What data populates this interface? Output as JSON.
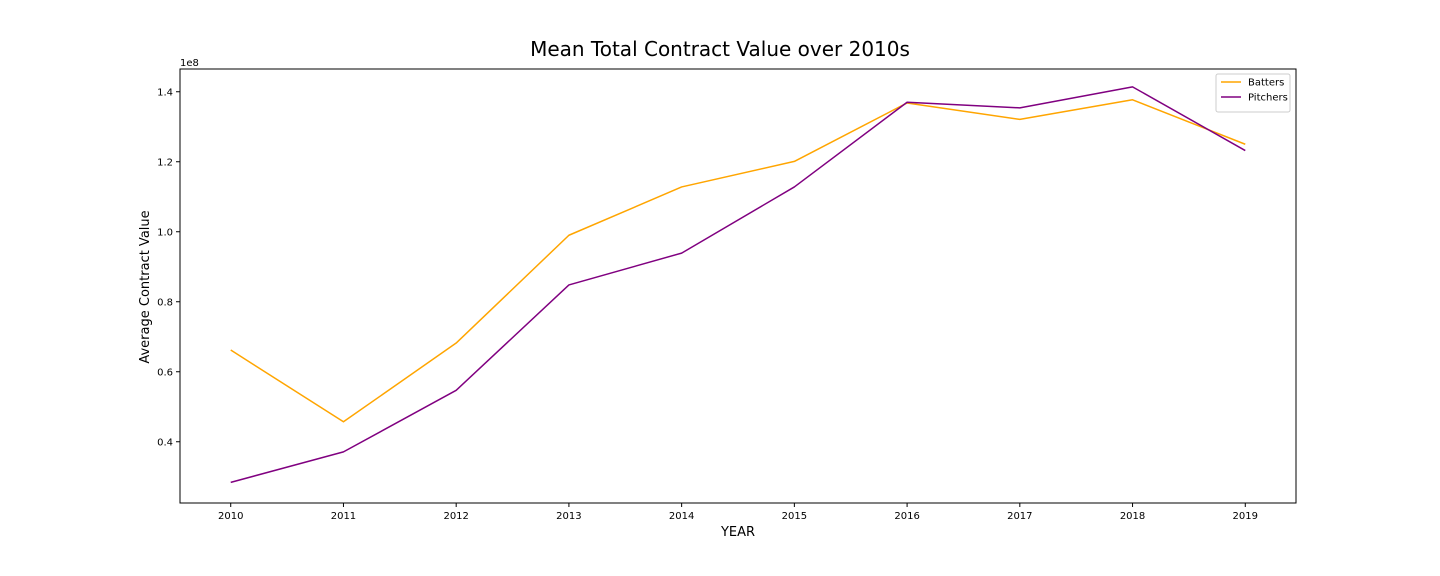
{
  "chart_data": {
    "type": "line",
    "title": "Mean Total Contract Value over 2010s",
    "xlabel": "YEAR",
    "ylabel": "Average Contract Value",
    "y_offset_label": "1e8",
    "y_scale_factor": 100000000,
    "x": [
      2010,
      2011,
      2012,
      2013,
      2014,
      2015,
      2016,
      2017,
      2018,
      2019
    ],
    "x_tick_labels": [
      "2010",
      "2011",
      "2012",
      "2013",
      "2014",
      "2015",
      "2016",
      "2017",
      "2018",
      "2019"
    ],
    "y_ticks": [
      0.4,
      0.6,
      0.8,
      1.0,
      1.2,
      1.4
    ],
    "y_tick_labels": [
      "0.4",
      "0.6",
      "0.8",
      "1.0",
      "1.2",
      "1.4"
    ],
    "xlim": [
      2009.55,
      2019.45
    ],
    "ylim": [
      0.225,
      1.465
    ],
    "grid": false,
    "legend_position": "top-right",
    "series": [
      {
        "name": "Batters",
        "color": "#FFA500",
        "values": [
          0.662,
          0.457,
          0.682,
          0.99,
          1.128,
          1.201,
          1.368,
          1.321,
          1.377,
          1.25
        ]
      },
      {
        "name": "Pitchers",
        "color": "#800080",
        "values": [
          0.284,
          0.371,
          0.547,
          0.848,
          0.939,
          1.128,
          1.37,
          1.354,
          1.414,
          1.232
        ]
      }
    ]
  }
}
